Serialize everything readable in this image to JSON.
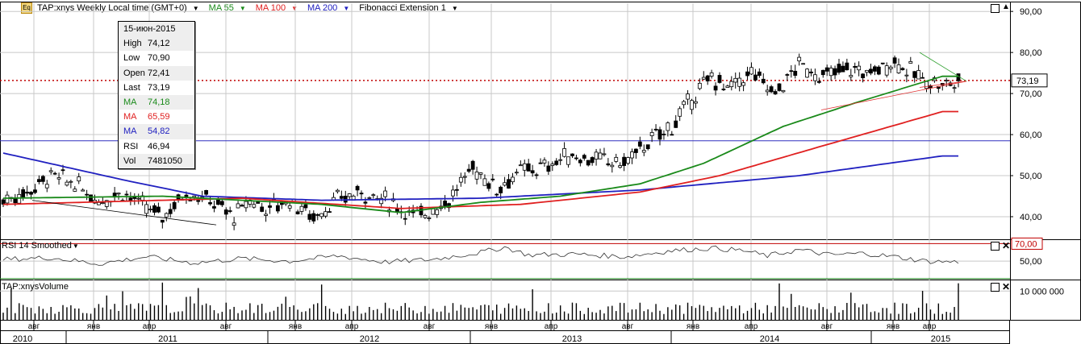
{
  "toolbar": {
    "icon": "Eq",
    "symbol": "TAP:xnys Weekly Local time (GMT+0)",
    "ma55": "MA 55",
    "ma100": "MA 100",
    "ma200": "MA 200",
    "fib": "Fibonacci Extension 1"
  },
  "info_box": {
    "date": "15-июн-2015",
    "rows": [
      {
        "k": "High",
        "v": "74,12",
        "color": "#000000"
      },
      {
        "k": "Low",
        "v": "70,90",
        "color": "#000000"
      },
      {
        "k": "Open",
        "v": "72,41",
        "color": "#000000"
      },
      {
        "k": "Last",
        "v": "73,19",
        "color": "#000000"
      },
      {
        "k": "MA",
        "v": "74,18",
        "color": "#1a8a1a"
      },
      {
        "k": "MA",
        "v": "65,59",
        "color": "#e02020"
      },
      {
        "k": "MA",
        "v": "54,82",
        "color": "#2020c0"
      },
      {
        "k": "RSI",
        "v": "46,94",
        "color": "#000000"
      },
      {
        "k": "Vol",
        "v": "7481050",
        "color": "#000000"
      }
    ]
  },
  "rsi_label": "RSI 14 Smoothed",
  "vol_label": "TAP:xnysVolume",
  "colors": {
    "ma55": "#1a8a1a",
    "ma100": "#e02020",
    "ma200": "#2020c0",
    "last_price": "#c00000",
    "rsi_band": "#c00000"
  },
  "chart_data": {
    "type": "candlestick",
    "price_axis": {
      "ticks": [
        "40,00",
        "50,00",
        "60,00",
        "70,00",
        "80,00",
        "90,00"
      ],
      "values": [
        40,
        50,
        60,
        70,
        80,
        90
      ],
      "range": [
        34.5,
        92
      ]
    },
    "last_price_label": "73,19",
    "last_price": 73.19,
    "horizontal_line": 58.5,
    "rsi_axis": {
      "ticks": [
        "50,00"
      ],
      "values": [
        50
      ],
      "band_label": "70,00",
      "band": [
        70,
        30
      ],
      "range": [
        29,
        75
      ]
    },
    "volume_axis": {
      "ticks": [
        "10 000 000"
      ],
      "values": [
        10000000
      ],
      "range": [
        0,
        14000000
      ]
    },
    "months": [
      "авг",
      "янв",
      "апр",
      "авг",
      "янв",
      "апр",
      "авг",
      "янв",
      "апр",
      "авг",
      "янв",
      "апр",
      "авг",
      "янв",
      "апр"
    ],
    "years": [
      "2010",
      "2011",
      "2012",
      "2013",
      "2014",
      "2015"
    ],
    "price_anchors": [
      [
        0,
        44
      ],
      [
        6,
        46
      ],
      [
        12,
        50
      ],
      [
        18,
        48
      ],
      [
        24,
        44
      ],
      [
        30,
        46
      ],
      [
        36,
        42
      ],
      [
        40,
        40
      ],
      [
        46,
        46
      ],
      [
        52,
        44
      ],
      [
        58,
        40
      ],
      [
        62,
        44
      ],
      [
        66,
        42
      ],
      [
        72,
        44
      ],
      [
        78,
        40
      ],
      [
        84,
        44
      ],
      [
        90,
        46
      ],
      [
        96,
        44
      ],
      [
        104,
        40
      ],
      [
        112,
        44
      ],
      [
        118,
        52
      ],
      [
        124,
        47
      ],
      [
        130,
        51
      ],
      [
        136,
        52
      ],
      [
        142,
        55
      ],
      [
        148,
        54
      ],
      [
        156,
        53
      ],
      [
        162,
        58
      ],
      [
        168,
        62
      ],
      [
        174,
        70
      ],
      [
        178,
        74
      ],
      [
        182,
        71
      ],
      [
        188,
        75
      ],
      [
        194,
        70
      ],
      [
        200,
        77
      ],
      [
        206,
        74
      ],
      [
        212,
        76
      ],
      [
        218,
        75
      ],
      [
        224,
        78
      ],
      [
        230,
        74
      ],
      [
        236,
        72
      ],
      [
        240,
        73
      ]
    ],
    "ma55_anchors": [
      [
        0,
        44.5
      ],
      [
        40,
        45
      ],
      [
        80,
        43
      ],
      [
        100,
        41
      ],
      [
        120,
        43.5
      ],
      [
        140,
        45
      ],
      [
        160,
        48
      ],
      [
        176,
        53
      ],
      [
        196,
        62
      ],
      [
        215,
        68
      ],
      [
        236,
        74.2
      ]
    ],
    "ma100_anchors": [
      [
        0,
        43
      ],
      [
        60,
        44.5
      ],
      [
        100,
        42
      ],
      [
        130,
        43
      ],
      [
        160,
        46
      ],
      [
        180,
        50
      ],
      [
        205,
        57
      ],
      [
        236,
        65.6
      ]
    ],
    "ma200_anchors": [
      [
        0,
        55.5
      ],
      [
        30,
        49
      ],
      [
        50,
        45
      ],
      [
        80,
        44
      ],
      [
        120,
        44.5
      ],
      [
        160,
        46.5
      ],
      [
        200,
        50
      ],
      [
        236,
        54.8
      ]
    ],
    "rsi_anchors": [
      [
        0,
        52
      ],
      [
        12,
        54
      ],
      [
        24,
        47
      ],
      [
        36,
        55
      ],
      [
        48,
        48
      ],
      [
        60,
        53
      ],
      [
        72,
        50
      ],
      [
        84,
        56
      ],
      [
        96,
        49
      ],
      [
        108,
        52
      ],
      [
        120,
        60
      ],
      [
        126,
        66
      ],
      [
        132,
        57
      ],
      [
        144,
        58
      ],
      [
        156,
        55
      ],
      [
        168,
        62
      ],
      [
        178,
        65
      ],
      [
        186,
        62
      ],
      [
        192,
        56
      ],
      [
        200,
        63
      ],
      [
        208,
        57
      ],
      [
        216,
        59
      ],
      [
        224,
        55
      ],
      [
        232,
        50
      ],
      [
        240,
        49
      ]
    ]
  }
}
